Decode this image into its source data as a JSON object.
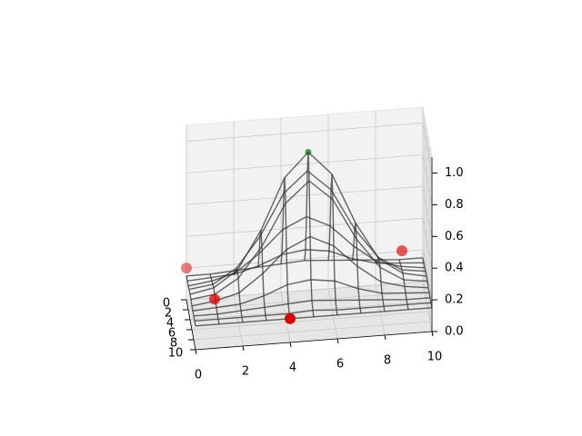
{
  "chart_data": {
    "type": "wireframe",
    "x": [
      0,
      1,
      2,
      3,
      4,
      5,
      6,
      7,
      8,
      9,
      10
    ],
    "y": [
      0,
      1,
      2,
      3,
      4,
      5,
      6,
      7,
      8,
      9,
      10
    ],
    "z": [
      [
        0.15,
        0.15,
        0.16,
        0.17,
        0.18,
        0.19,
        0.18,
        0.17,
        0.16,
        0.15,
        0.15
      ],
      [
        0.15,
        0.16,
        0.17,
        0.21,
        0.27,
        0.29,
        0.27,
        0.21,
        0.17,
        0.16,
        0.15
      ],
      [
        0.15,
        0.17,
        0.21,
        0.32,
        0.46,
        0.53,
        0.46,
        0.32,
        0.21,
        0.17,
        0.15
      ],
      [
        0.16,
        0.18,
        0.27,
        0.46,
        0.72,
        0.85,
        0.72,
        0.46,
        0.27,
        0.18,
        0.16
      ],
      [
        0.16,
        0.19,
        0.29,
        0.53,
        0.85,
        1.0,
        0.85,
        0.53,
        0.29,
        0.19,
        0.16
      ],
      [
        0.16,
        0.18,
        0.27,
        0.46,
        0.72,
        0.85,
        0.72,
        0.46,
        0.27,
        0.18,
        0.16
      ],
      [
        0.15,
        0.17,
        0.21,
        0.32,
        0.46,
        0.53,
        0.46,
        0.32,
        0.21,
        0.17,
        0.15
      ],
      [
        0.15,
        0.16,
        0.17,
        0.21,
        0.27,
        0.29,
        0.27,
        0.21,
        0.17,
        0.16,
        0.15
      ],
      [
        0.15,
        0.15,
        0.16,
        0.17,
        0.18,
        0.19,
        0.18,
        0.17,
        0.16,
        0.15,
        0.15
      ],
      [
        0.15,
        0.15,
        0.15,
        0.15,
        0.15,
        0.16,
        0.15,
        0.15,
        0.15,
        0.15,
        0.15
      ],
      [
        0.15,
        0.15,
        0.15,
        0.15,
        0.15,
        0.15,
        0.15,
        0.15,
        0.15,
        0.15,
        0.15
      ]
    ],
    "color": "#333333",
    "points": [
      {
        "color": "#dd0000",
        "x": [
          0,
          1,
          4,
          9
        ],
        "y": [
          0,
          5,
          10,
          3
        ],
        "z": [
          0.2,
          0.15,
          0.15,
          0.3
        ]
      },
      {
        "color": "#007700",
        "x": [
          5
        ],
        "y": [
          4
        ],
        "z": [
          1.0
        ]
      }
    ],
    "xlim": [
      0,
      10
    ],
    "ylim": [
      0,
      10
    ],
    "zlim": [
      0,
      1.1
    ],
    "xticks": [
      0,
      2,
      4,
      6,
      8,
      10
    ],
    "yticks": [
      0,
      2,
      4,
      6,
      8,
      10
    ],
    "zticks": [
      {
        "value": 0,
        "label": "0.0"
      },
      0.2,
      0.4,
      0.6,
      0.8,
      {
        "value": 1,
        "label": "1.0"
      }
    ],
    "grid": true
  }
}
